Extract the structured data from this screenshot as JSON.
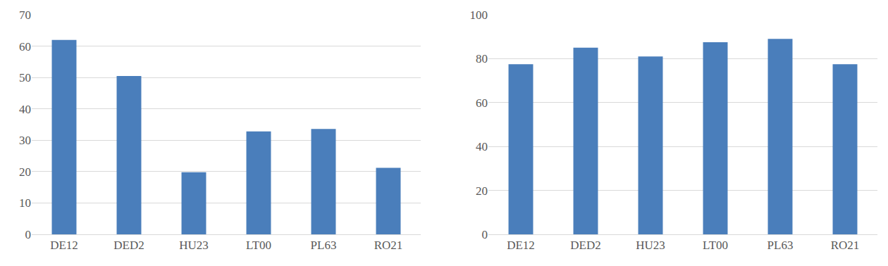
{
  "chart_data": [
    {
      "type": "bar",
      "categories": [
        "DE12",
        "DED2",
        "HU23",
        "LT00",
        "PL63",
        "RO21"
      ],
      "values": [
        62,
        50.5,
        19.8,
        32.8,
        33.6,
        21.2
      ],
      "color": "#4a7ebb",
      "ylim": [
        0,
        70
      ],
      "yticks": [
        0,
        10,
        20,
        30,
        40,
        50,
        60,
        70
      ],
      "grid": true
    },
    {
      "type": "bar",
      "categories": [
        "DE12",
        "DED2",
        "HU23",
        "LT00",
        "PL63",
        "RO21"
      ],
      "values": [
        77.5,
        85,
        81,
        87.5,
        89,
        77.5
      ],
      "color": "#4a7ebb",
      "ylim": [
        0,
        100
      ],
      "yticks": [
        0,
        20,
        40,
        60,
        80,
        100
      ],
      "grid": true
    }
  ]
}
